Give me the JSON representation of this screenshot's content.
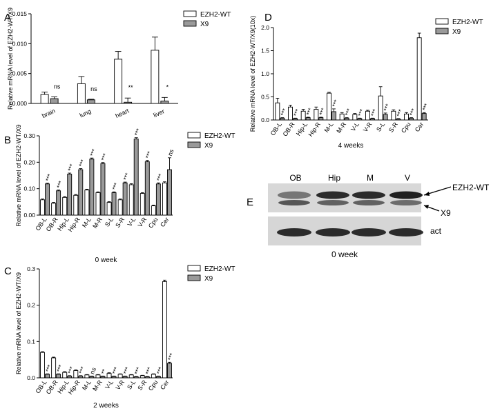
{
  "panels": {
    "A": {
      "letter": "A"
    },
    "B": {
      "letter": "B"
    },
    "C": {
      "letter": "C"
    },
    "D": {
      "letter": "D"
    },
    "E": {
      "letter": "E"
    }
  },
  "colors": {
    "wt": "#ffffff",
    "x9": "#9a9a9a",
    "ink": "#000000"
  },
  "chart_data": [
    {
      "id": "A",
      "type": "bar",
      "title": "",
      "xlabel": "",
      "ylabel": "Relative mRNA level of EZH2-WT/X9",
      "ylim": [
        0,
        0.015
      ],
      "yticks": [
        0,
        0.005,
        0.01,
        0.015
      ],
      "ytick_labels": [
        "0.000",
        "0.005",
        "0.010",
        "0.015"
      ],
      "categories": [
        "brain",
        "lung",
        "heart",
        "liver"
      ],
      "series": [
        {
          "name": "EZH2-WT",
          "values": [
            0.0015,
            0.0033,
            0.0074,
            0.0089
          ],
          "errors": [
            0.0004,
            0.0012,
            0.0013,
            0.0022
          ]
        },
        {
          "name": "X9",
          "values": [
            0.0008,
            0.0006,
            0.0002,
            0.0004
          ],
          "errors": [
            0.0003,
            0.0001,
            0.0007,
            0.0006
          ]
        }
      ],
      "significance": [
        "ns",
        "ns",
        "**",
        "*"
      ],
      "legend": "top-right"
    },
    {
      "id": "B",
      "type": "bar",
      "title": "",
      "xlabel": "0 week",
      "ylabel": "Relative mRNA level of EZH2-WT/X9",
      "ylim": [
        0,
        0.3
      ],
      "categories": [
        "OB-L",
        "OB-R",
        "Hip-L",
        "Hip-R",
        "M-L",
        "M-R",
        "S-L",
        "S-R",
        "V-L",
        "V-R",
        "Cpu",
        "Cer"
      ],
      "series": [
        {
          "name": "EZH2-WT",
          "values": [
            0.058,
            0.045,
            0.067,
            0.075,
            0.095,
            0.085,
            0.048,
            0.058,
            0.115,
            0.082,
            0.035,
            0.122
          ],
          "errors": [
            0.003,
            0.003,
            0.003,
            0.003,
            0.003,
            0.003,
            0.003,
            0.003,
            0.004,
            0.003,
            0.003,
            0.004
          ]
        },
        {
          "name": "X9",
          "values": [
            0.118,
            0.092,
            0.155,
            0.172,
            0.212,
            0.195,
            0.085,
            0.122,
            0.288,
            0.202,
            0.118,
            0.172
          ],
          "errors": [
            0.003,
            0.003,
            0.004,
            0.004,
            0.004,
            0.004,
            0.003,
            0.003,
            0.005,
            0.005,
            0.004,
            0.045
          ]
        }
      ],
      "significance": [
        "***",
        "***",
        "***",
        "***",
        "***",
        "***",
        "***",
        "***",
        "***",
        "***",
        "***",
        "ns"
      ],
      "legend": "top-right"
    },
    {
      "id": "C",
      "type": "bar",
      "title": "",
      "xlabel": "2 weeks",
      "ylabel": "Relative mRNA level of EZH2-WT/X9",
      "ylim": [
        0,
        0.3
      ],
      "categories": [
        "OB-L",
        "OB-R",
        "Hip-L",
        "Hip-R",
        "M-L",
        "M-R",
        "V-L",
        "V-R",
        "S-L",
        "S-R",
        "Cpu",
        "Cer"
      ],
      "series": [
        {
          "name": "EZH2-WT",
          "values": [
            0.07,
            0.055,
            0.015,
            0.02,
            0.008,
            0.008,
            0.012,
            0.01,
            0.008,
            0.006,
            0.01,
            0.265
          ],
          "errors": [
            0.002,
            0.002,
            0.002,
            0.002,
            0.001,
            0.001,
            0.002,
            0.001,
            0.001,
            0.001,
            0.001,
            0.004
          ]
        },
        {
          "name": "X9",
          "values": [
            0.01,
            0.01,
            0.005,
            0.005,
            0.004,
            0.004,
            0.004,
            0.004,
            0.003,
            0.003,
            0.004,
            0.04
          ],
          "errors": [
            0.001,
            0.001,
            0.001,
            0.001,
            0.001,
            0.001,
            0.001,
            0.001,
            0.001,
            0.001,
            0.001,
            0.003
          ]
        }
      ],
      "significance": [
        "***",
        "***",
        "***",
        "***",
        "ns",
        "**",
        "***",
        "***",
        "***",
        "***",
        "***",
        "***"
      ],
      "legend": "top-right"
    },
    {
      "id": "D",
      "type": "bar",
      "title": "",
      "xlabel": "4 weeks",
      "ylabel": "Relative mRNA level of EZH2-WT/X9(10x)",
      "ylim": [
        0,
        2.0
      ],
      "categories": [
        "OB-L",
        "OB-R",
        "Hip-L",
        "Hip-R",
        "M-L",
        "M-R",
        "V-L",
        "V-R",
        "S-L",
        "S-R",
        "Cpu",
        "Cer"
      ],
      "series": [
        {
          "name": "EZH2-WT",
          "values": [
            0.37,
            0.28,
            0.19,
            0.23,
            0.58,
            0.13,
            0.12,
            0.19,
            0.52,
            0.19,
            0.13,
            1.78
          ],
          "errors": [
            0.1,
            0.04,
            0.04,
            0.05,
            0.02,
            0.03,
            0.02,
            0.02,
            0.2,
            0.03,
            0.03,
            0.1
          ]
        },
        {
          "name": "X9",
          "values": [
            0.04,
            0.03,
            0.05,
            0.05,
            0.18,
            0.04,
            0.03,
            0.03,
            0.12,
            0.02,
            0.04,
            0.14
          ],
          "errors": [
            0.01,
            0.01,
            0.01,
            0.01,
            0.06,
            0.01,
            0.01,
            0.01,
            0.03,
            0.01,
            0.01,
            0.02
          ]
        }
      ],
      "significance": [
        "***",
        "***",
        "***",
        "***",
        "***",
        "***",
        "***",
        "***",
        "***",
        "***",
        "***",
        "***"
      ],
      "legend": "top-right"
    }
  ],
  "blot": {
    "lanes": [
      "OB",
      "Hip",
      "M",
      "V"
    ],
    "band_labels": {
      "wt": "EZH2-WT",
      "x9": "X9",
      "act": "act"
    },
    "caption": "0 week"
  }
}
